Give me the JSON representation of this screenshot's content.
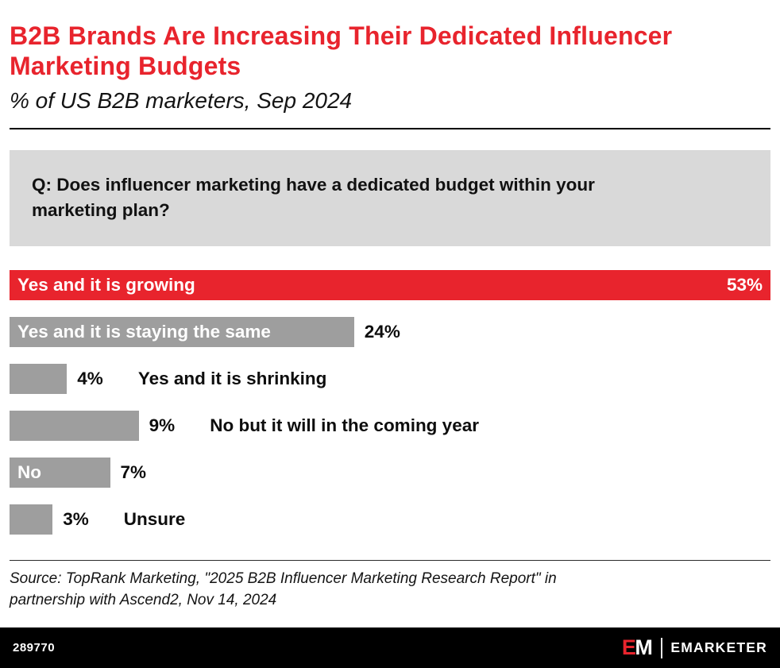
{
  "colors": {
    "accent_red": "#e8242d",
    "bar_gray": "#9e9e9e",
    "question_bg": "#d9d9d9",
    "footer_bg": "#000000"
  },
  "header": {
    "title": "B2B Brands Are Increasing Their Dedicated Influencer Marketing Budgets",
    "subtitle": "% of US B2B marketers, Sep 2024"
  },
  "question": {
    "text": "Q: Does influencer marketing have a dedicated budget within your marketing plan?"
  },
  "chart_data": {
    "type": "bar",
    "orientation": "horizontal",
    "title": "B2B Brands Are Increasing Their Dedicated Influencer Marketing Budgets",
    "subtitle": "% of US B2B marketers, Sep 2024",
    "unit": "%",
    "xlim": [
      0,
      53
    ],
    "grid": false,
    "legend": false,
    "categories": [
      "Yes and it is growing",
      "Yes and it is staying the same",
      "Yes and it is shrinking",
      "No but it will in the coming year",
      "No",
      "Unsure"
    ],
    "values": [
      53,
      24,
      4,
      9,
      7,
      3
    ],
    "value_labels": [
      "53%",
      "24%",
      "4%",
      "9%",
      "7%",
      "3%"
    ],
    "bar_colors": [
      "#e8242d",
      "#9e9e9e",
      "#9e9e9e",
      "#9e9e9e",
      "#9e9e9e",
      "#9e9e9e"
    ],
    "category_label_positions": [
      "inside",
      "inside",
      "outside",
      "outside",
      "inside",
      "outside"
    ],
    "value_label_positions": [
      "inside",
      "outside",
      "outside",
      "outside",
      "outside",
      "outside"
    ]
  },
  "source": {
    "line1": "Source: TopRank Marketing, \"2025 B2B Influencer Marketing Research Report\" in",
    "line2": "partnership with Ascend2, Nov 14, 2024"
  },
  "footer": {
    "chart_id": "289770",
    "logo_mark_e": "E",
    "logo_mark_m": "M",
    "logo_text": "EMARKETER"
  }
}
